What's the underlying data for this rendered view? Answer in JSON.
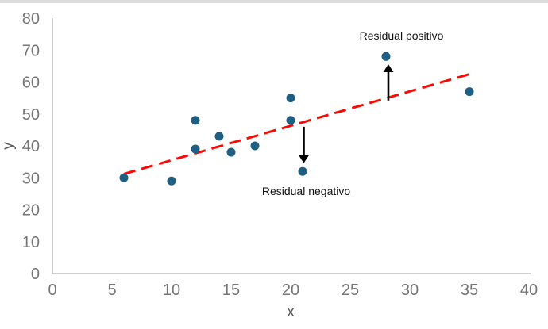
{
  "chart_data": {
    "type": "scatter",
    "title": "",
    "xlabel": "x",
    "ylabel": "y",
    "xlim": [
      0,
      40
    ],
    "ylim": [
      0,
      80
    ],
    "x_ticks": [
      0,
      5,
      10,
      15,
      20,
      25,
      30,
      35,
      40
    ],
    "y_ticks": [
      0,
      10,
      20,
      30,
      40,
      50,
      60,
      70,
      80
    ],
    "grid": false,
    "legend": false,
    "points": [
      [
        6,
        30
      ],
      [
        10,
        29
      ],
      [
        12,
        39
      ],
      [
        12,
        48
      ],
      [
        14,
        43
      ],
      [
        15,
        38
      ],
      [
        17,
        40
      ],
      [
        20,
        48
      ],
      [
        20,
        55
      ],
      [
        21,
        32
      ],
      [
        28,
        68
      ],
      [
        35,
        57
      ]
    ],
    "trendline": {
      "x1": 6,
      "y1": 31.2,
      "x2": 35.4,
      "y2": 62.9,
      "style": "dashed"
    },
    "annotations": [
      {
        "label": "Residual positivo",
        "point": [
          28,
          68
        ],
        "arrow": {
          "x": 28.2,
          "y_from": 54.2,
          "y_to": 65.6,
          "direction": "up"
        },
        "label_x": 29.3,
        "label_y": 74.5
      },
      {
        "label": "Residual negativo",
        "point": [
          21,
          32
        ],
        "arrow": {
          "x": 21.1,
          "y_from": 46.0,
          "y_to": 34.6,
          "direction": "down"
        },
        "label_x": 21.3,
        "label_y": 25.8
      }
    ],
    "colors": {
      "marker": "#1F6082",
      "trendline": "#FB0905",
      "axis_line": "#BFBFBF",
      "tick_label": "#757575",
      "axis_title": "#595959",
      "annotation_text": "#111111",
      "arrow": "#000000"
    }
  }
}
